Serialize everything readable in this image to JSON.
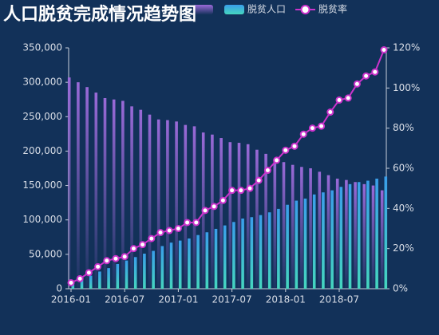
{
  "chart_data": {
    "type": "bar_line",
    "title": "人口脱贫完成情况趋势图",
    "categories": [
      "2016-01",
      null,
      null,
      null,
      null,
      null,
      "2016-07",
      null,
      null,
      null,
      null,
      null,
      "2017-01",
      null,
      null,
      null,
      null,
      null,
      "2017-07",
      null,
      null,
      null,
      null,
      null,
      "2018-01",
      null,
      null,
      null,
      null,
      null,
      "2018-07",
      null,
      null,
      null,
      null,
      null
    ],
    "series": [
      {
        "type": "bar",
        "color": "#9a6ad8",
        "values": [
          307000,
          300000,
          293000,
          285000,
          277000,
          275000,
          273000,
          265000,
          260000,
          253000,
          246000,
          245000,
          243000,
          238000,
          236000,
          227000,
          224000,
          219000,
          213000,
          212000,
          210000,
          202000,
          196000,
          188000,
          184000,
          180000,
          177000,
          175000,
          170000,
          165000,
          160000,
          158000,
          155000,
          152000,
          150000,
          143000
        ]
      },
      {
        "type": "bar",
        "name": "脱贫人口",
        "color": "#3a9eea",
        "values": [
          10000,
          14000,
          19000,
          25000,
          30000,
          36000,
          41000,
          46000,
          51000,
          55000,
          62000,
          67000,
          70000,
          73000,
          78000,
          82000,
          87000,
          92000,
          97000,
          102000,
          104000,
          107000,
          111000,
          116000,
          122000,
          128000,
          131000,
          137000,
          140000,
          143000,
          148000,
          152000,
          155000,
          157000,
          160000,
          163000
        ]
      },
      {
        "type": "line",
        "name": "脱贫率",
        "color": "#cc33cc",
        "axis": "y2",
        "values": [
          3,
          5,
          8,
          11,
          14,
          15,
          16,
          20,
          22,
          25,
          28,
          29,
          30,
          33,
          33,
          39,
          41,
          44,
          49,
          49,
          50,
          54,
          59,
          64,
          69,
          71,
          77,
          80,
          81,
          88,
          94,
          95,
          102,
          106,
          108,
          119
        ]
      }
    ],
    "ylim": [
      0,
      350000
    ],
    "yticks": [
      0,
      {
        "value": 50000,
        "label": "50,000"
      },
      {
        "value": 100000,
        "label": "100,000"
      },
      {
        "value": 150000,
        "label": "150,000"
      },
      {
        "value": 200000,
        "label": "200,000"
      },
      {
        "value": 250000,
        "label": "250,000"
      },
      {
        "value": 300000,
        "label": "300,000"
      },
      {
        "value": 350000,
        "label": "350,000"
      }
    ],
    "y2lim": [
      0,
      120
    ],
    "y2ticks": [
      {
        "value": 0,
        "label": "0%"
      },
      {
        "value": 20,
        "label": "20%"
      },
      {
        "value": 40,
        "label": "40%"
      },
      {
        "value": 60,
        "label": "60%"
      },
      {
        "value": 80,
        "label": "80%"
      },
      {
        "value": 100,
        "label": "100%"
      },
      {
        "value": 120,
        "label": "120%"
      }
    ]
  }
}
